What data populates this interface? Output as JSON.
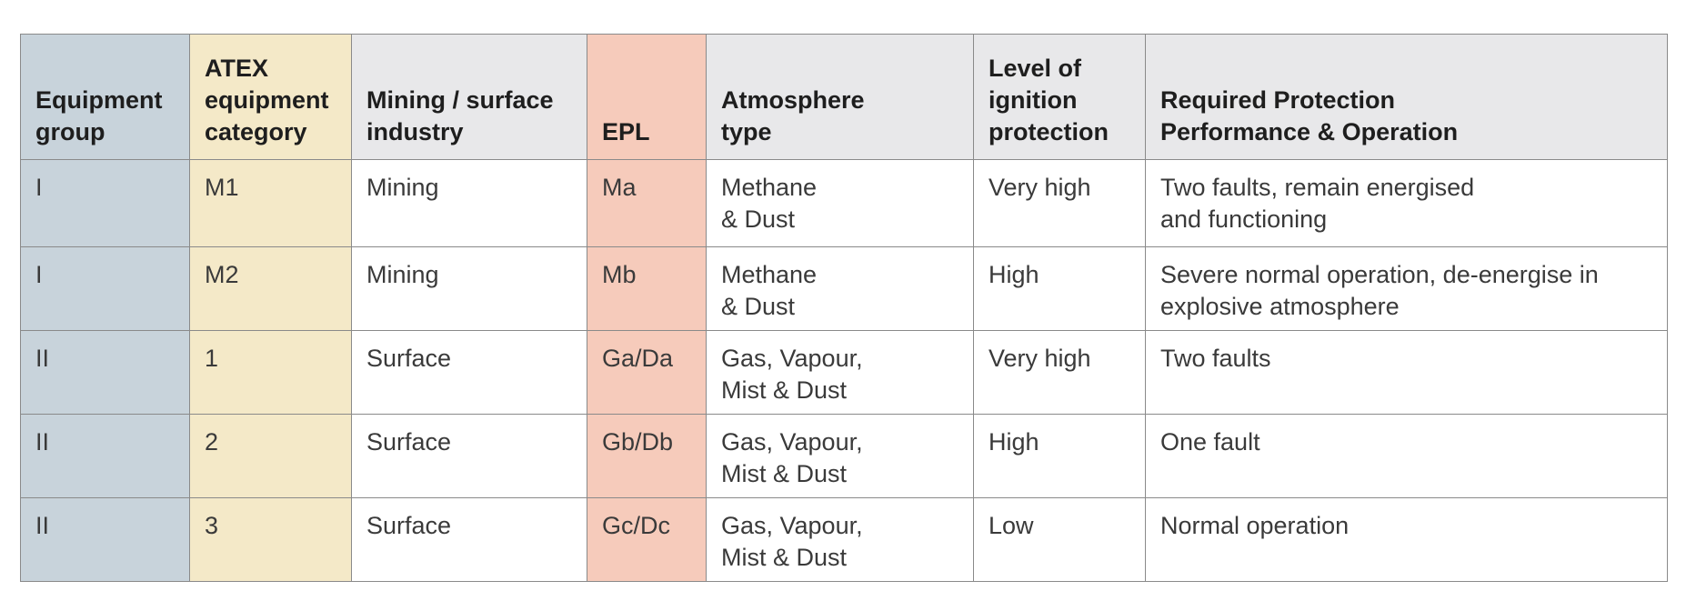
{
  "table": {
    "headers": [
      "Equipment\ngroup",
      "ATEX\nequipment\ncategory",
      "Mining / surface\nindustry",
      "EPL",
      "Atmosphere\ntype",
      "Level of\nignition\nprotection",
      "Required Protection\nPerformance & Operation"
    ],
    "rows": [
      [
        "I",
        "M1",
        "Mining",
        "Ma",
        "Methane\n& Dust",
        "Very high",
        "Two faults, remain energised\nand functioning"
      ],
      [
        "I",
        "M2",
        "Mining",
        "Mb",
        "Methane\n& Dust",
        "High",
        "Severe normal operation, de-energise in\nexplosive atmosphere"
      ],
      [
        "II",
        "1",
        "Surface",
        "Ga/Da",
        "Gas, Vapour,\nMist & Dust",
        "Very high",
        "Two faults"
      ],
      [
        "II",
        "2",
        "Surface",
        "Gb/Db",
        "Gas, Vapour,\nMist & Dust",
        "High",
        "One fault"
      ],
      [
        "II",
        "3",
        "Surface",
        "Gc/Dc",
        "Gas, Vapour,\nMist & Dust",
        "Low",
        "Normal operation"
      ]
    ],
    "column_colors": {
      "equipment_group": "#c8d3db",
      "atex_category": "#f4e9c8",
      "epl": "#f6cbbb",
      "header_default": "#e8e8ea"
    }
  }
}
